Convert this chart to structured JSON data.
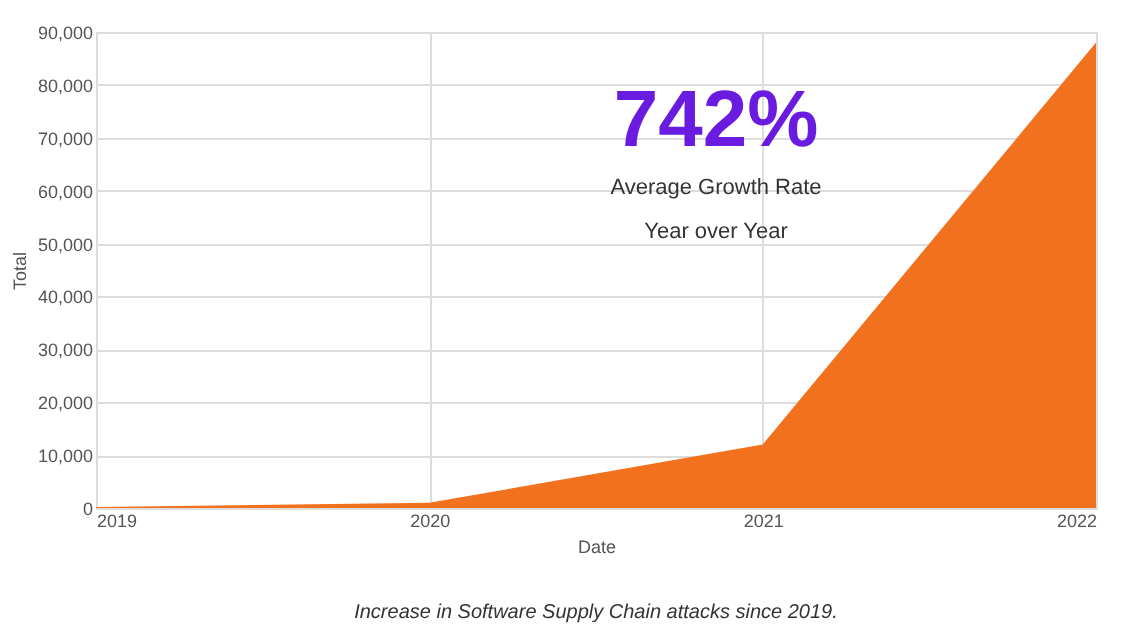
{
  "chart_data": {
    "type": "area",
    "x": [
      2019,
      2020,
      2021,
      2022
    ],
    "values": [
      200,
      1000,
      12000,
      88000
    ],
    "color": "#f2711f",
    "xlabel": "Date",
    "ylabel": "Total",
    "xlim": [
      2019,
      2022
    ],
    "xticks": [
      2019,
      2020,
      2021,
      2022
    ],
    "ylim": [
      0,
      90000
    ],
    "yticks": [
      0,
      {
        "value": 10000,
        "label": "10,000"
      },
      {
        "value": 20000,
        "label": "20,000"
      },
      {
        "value": 30000,
        "label": "30,000"
      },
      {
        "value": 40000,
        "label": "40,000"
      },
      {
        "value": 50000,
        "label": "50,000"
      },
      {
        "value": 60000,
        "label": "60,000"
      },
      {
        "value": 70000,
        "label": "70,000"
      },
      {
        "value": 80000,
        "label": "80,000"
      },
      {
        "value": 90000,
        "label": "90,000"
      }
    ],
    "grid": true,
    "annotations": [
      "742%",
      "Average Growth Rate",
      "Year over Year",
      "Increase in Software Supply Chain attacks since 2019."
    ]
  }
}
